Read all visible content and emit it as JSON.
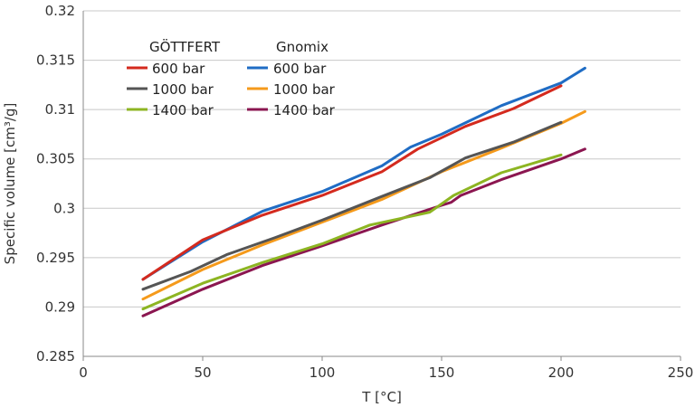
{
  "chart_data": {
    "type": "line",
    "xlabel": "T [°C]",
    "ylabel": "Specific volume [cm³/g]",
    "xlim": [
      0,
      250
    ],
    "ylim": [
      0.285,
      0.32
    ],
    "x_ticks": [
      "0",
      "50",
      "100",
      "150",
      "200",
      "250"
    ],
    "y_ticks": [
      "0.285",
      "0.29",
      "0.295",
      "0.3",
      "0.305",
      "0.31",
      "0.315",
      "0.32"
    ],
    "grid": "horizontal",
    "legend": {
      "placement": "top-left",
      "groups": [
        {
          "title": "GÖTTFERT",
          "entries": [
            "600 bar",
            "1000 bar",
            "1400 bar"
          ]
        },
        {
          "title": "Gnomix",
          "entries": [
            "600 bar",
            "1000 bar",
            "1400 bar"
          ]
        }
      ]
    },
    "series": [
      {
        "group": "Gnomix",
        "label": "600 bar",
        "color": "#1f6cc4",
        "points": [
          [
            25,
            0.2928
          ],
          [
            50,
            0.2966
          ],
          [
            75,
            0.2997
          ],
          [
            100,
            0.3017
          ],
          [
            125,
            0.3043
          ],
          [
            137,
            0.3062
          ],
          [
            150,
            0.3075
          ],
          [
            175,
            0.3104
          ],
          [
            200,
            0.3127
          ],
          [
            210,
            0.3142
          ]
        ]
      },
      {
        "group": "GÖTTFERT",
        "label": "600 bar",
        "color": "#d42a1e",
        "points": [
          [
            25,
            0.2928
          ],
          [
            50,
            0.2968
          ],
          [
            75,
            0.2993
          ],
          [
            100,
            0.3013
          ],
          [
            125,
            0.3037
          ],
          [
            140,
            0.306
          ],
          [
            160,
            0.3083
          ],
          [
            180,
            0.3101
          ],
          [
            200,
            0.3124
          ]
        ]
      },
      {
        "group": "Gnomix",
        "label": "1000 bar",
        "color": "#f59a1b",
        "points": [
          [
            25,
            0.2908
          ],
          [
            50,
            0.2938
          ],
          [
            75,
            0.2963
          ],
          [
            100,
            0.2986
          ],
          [
            125,
            0.3009
          ],
          [
            150,
            0.3037
          ],
          [
            175,
            0.3061
          ],
          [
            200,
            0.3086
          ],
          [
            210,
            0.3098
          ]
        ]
      },
      {
        "group": "GÖTTFERT",
        "label": "1000 bar",
        "color": "#555555",
        "points": [
          [
            25,
            0.2918
          ],
          [
            45,
            0.2936
          ],
          [
            60,
            0.2953
          ],
          [
            80,
            0.297
          ],
          [
            100,
            0.2988
          ],
          [
            125,
            0.3012
          ],
          [
            145,
            0.3031
          ],
          [
            160,
            0.3051
          ],
          [
            180,
            0.3067
          ],
          [
            200,
            0.3087
          ]
        ]
      },
      {
        "group": "Gnomix",
        "label": "1400 bar",
        "color": "#8b1650",
        "points": [
          [
            25,
            0.2891
          ],
          [
            50,
            0.2918
          ],
          [
            75,
            0.2942
          ],
          [
            100,
            0.2962
          ],
          [
            125,
            0.2983
          ],
          [
            150,
            0.3003
          ],
          [
            154,
            0.3006
          ],
          [
            158,
            0.3013
          ],
          [
            175,
            0.3029
          ],
          [
            200,
            0.305
          ],
          [
            210,
            0.306
          ]
        ]
      },
      {
        "group": "GÖTTFERT",
        "label": "1400 bar",
        "color": "#8db522",
        "points": [
          [
            25,
            0.2898
          ],
          [
            50,
            0.2924
          ],
          [
            75,
            0.2945
          ],
          [
            100,
            0.2964
          ],
          [
            120,
            0.2983
          ],
          [
            145,
            0.2996
          ],
          [
            155,
            0.3013
          ],
          [
            175,
            0.3036
          ],
          [
            200,
            0.3054
          ]
        ]
      }
    ]
  }
}
